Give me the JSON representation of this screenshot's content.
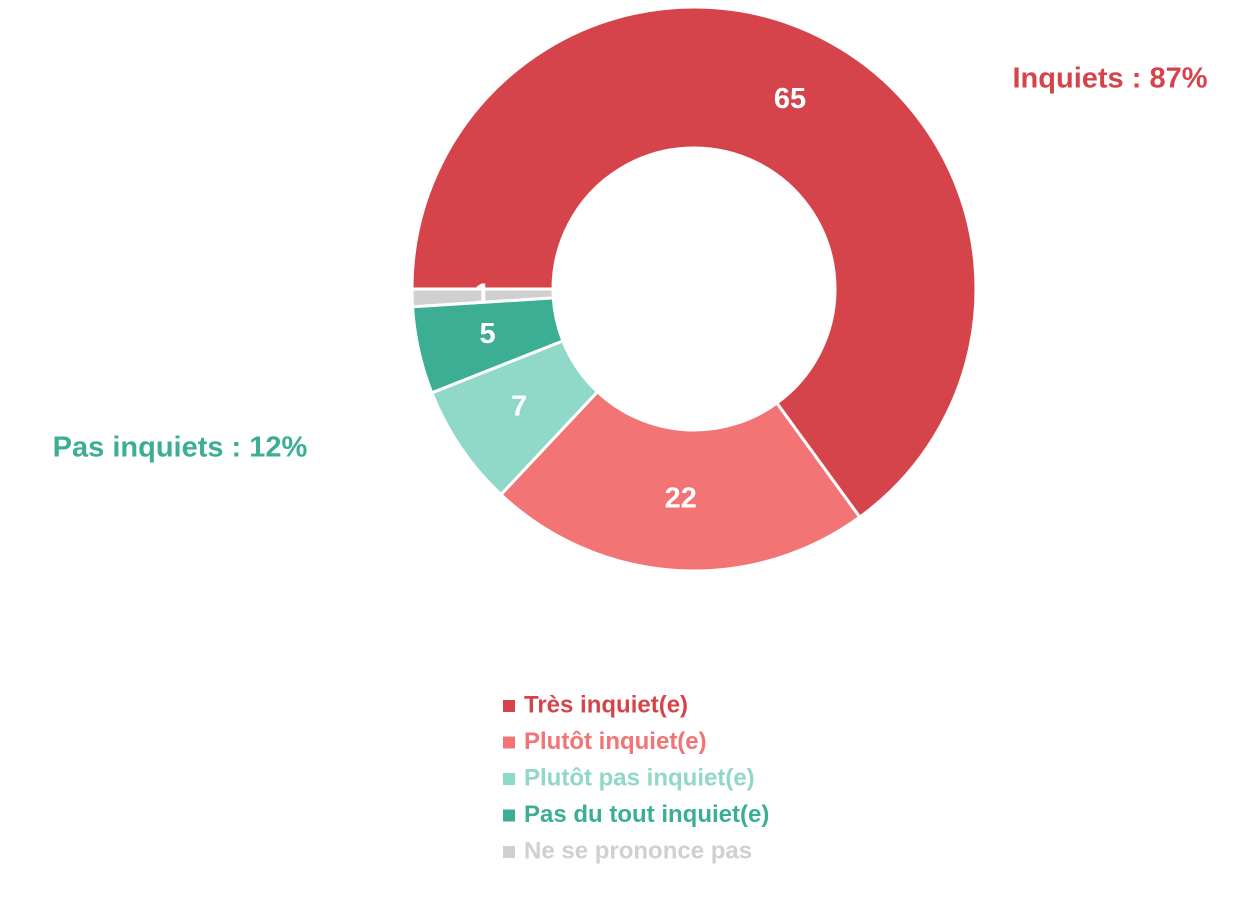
{
  "chart_data": {
    "type": "pie",
    "categories": [
      "Très inquiet(e)",
      "Plutôt inquiet(e)",
      "Plutôt pas inquiet(e)",
      "Pas du tout inquiet(e)",
      "Ne se prononce pas"
    ],
    "values": [
      65,
      22,
      7,
      5,
      1
    ],
    "colors": [
      "#d5444b",
      "#f27474",
      "#90d8c8",
      "#3cae94",
      "#d0d0d0"
    ],
    "annotations": [
      {
        "text": "Inquiets : 87%",
        "color": "#d5444b"
      },
      {
        "text": "Pas inquiets : 12%",
        "color": "#3cae94"
      }
    ],
    "legend": "bottom"
  }
}
